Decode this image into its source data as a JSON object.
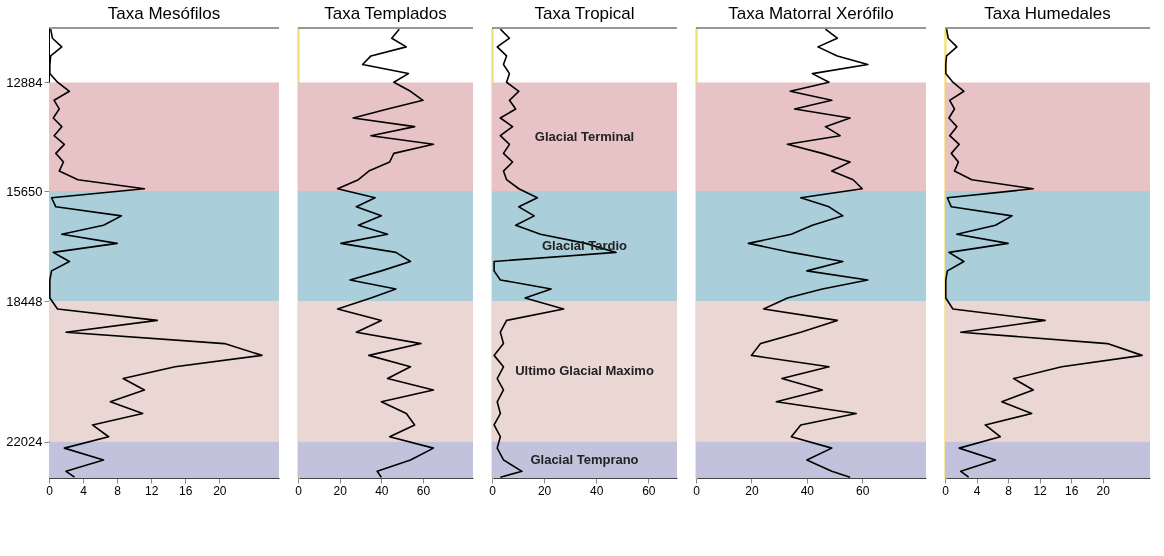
{
  "chart_data": [
    {
      "type": "line",
      "title": "Taxa Mesófilos",
      "xlim": [
        0,
        27
      ],
      "xticks": [
        0,
        4,
        8,
        12,
        16,
        20
      ],
      "ylim": [
        22950,
        11500
      ],
      "yticks": [
        12884,
        15650,
        18448,
        22024
      ],
      "series": [
        {
          "color": "#000000",
          "x": [
            0.2,
            0.4,
            1.5,
            0.2,
            0.1,
            0.1,
            1.0,
            2.4,
            0.6,
            1.2,
            0.5,
            1.5,
            0.6,
            1.8,
            0.8,
            1.7,
            1.2,
            3.4,
            11.2,
            0.3,
            0.8,
            8.5,
            6.4,
            1.5,
            8.0,
            0.5,
            2.4,
            0.3,
            0.1,
            0.1,
            0.1,
            1.0,
            12.7,
            2.0,
            20.6,
            25.0,
            14.8,
            8.7,
            11.2,
            7.2,
            11.0,
            5.1,
            7.0,
            1.8,
            6.4,
            2.0,
            3.0
          ],
          "values": [
            11530,
            11760,
            11980,
            12210,
            12430,
            12660,
            12880,
            13110,
            13340,
            13560,
            13790,
            14010,
            14240,
            14460,
            14690,
            14910,
            15140,
            15360,
            15590,
            15820,
            16050,
            16280,
            16520,
            16750,
            16980,
            17210,
            17440,
            17680,
            17910,
            18140,
            18370,
            18650,
            18940,
            19240,
            19530,
            19830,
            20120,
            20420,
            20710,
            21010,
            21310,
            21600,
            21900,
            22190,
            22490,
            22780,
            22930
          ]
        }
      ],
      "bands": [
        {
          "axis": "y",
          "from": 12884,
          "to": 15650,
          "color": "#e7c3c6"
        },
        {
          "axis": "y",
          "from": 15650,
          "to": 18448,
          "color": "#aacfdb"
        },
        {
          "axis": "y",
          "from": 18448,
          "to": 22024,
          "color": "#ead6d3"
        },
        {
          "axis": "y",
          "from": 22024,
          "to": 22950,
          "color": "#c3c2dd"
        }
      ]
    },
    {
      "type": "line",
      "title": "Taxa Templados",
      "xlim": [
        0,
        84
      ],
      "xticks": [
        0,
        20,
        40,
        60
      ],
      "ylim": [
        22950,
        11500
      ],
      "tick_labels": "x",
      "series": [
        {
          "color": "#000000",
          "x": [
            48.6,
            45,
            52,
            35,
            31,
            53,
            46,
            54,
            60,
            43,
            26.5,
            56,
            35,
            65,
            46,
            44,
            34,
            29,
            19,
            37,
            28,
            40,
            29,
            43,
            20.6,
            47,
            54,
            40,
            25,
            47,
            35,
            19,
            40,
            28,
            59,
            34,
            54,
            43,
            65,
            40,
            52,
            56,
            44,
            65,
            54,
            38,
            40
          ],
          "values": [
            11530,
            11760,
            11980,
            12210,
            12430,
            12660,
            12880,
            13110,
            13340,
            13560,
            13790,
            14010,
            14240,
            14460,
            14690,
            14910,
            15140,
            15360,
            15590,
            15820,
            16050,
            16280,
            16520,
            16750,
            16980,
            17210,
            17440,
            17680,
            17910,
            18140,
            18370,
            18650,
            18940,
            19240,
            19530,
            19830,
            20120,
            20420,
            20710,
            21010,
            21310,
            21600,
            21900,
            22190,
            22490,
            22780,
            22930
          ]
        }
      ],
      "bands": [
        {
          "axis": "y",
          "from": 12884,
          "to": 15650,
          "color": "#e7c3c6"
        },
        {
          "axis": "y",
          "from": 15650,
          "to": 18448,
          "color": "#aacfdb"
        },
        {
          "axis": "y",
          "from": 18448,
          "to": 22024,
          "color": "#ead6d3"
        },
        {
          "axis": "y",
          "from": 22024,
          "to": 22950,
          "color": "#c3c2dd"
        }
      ]
    },
    {
      "type": "line",
      "title": "Taxa Tropical",
      "xlim": [
        0,
        71
      ],
      "xticks": [
        0,
        20,
        40,
        60
      ],
      "ylim": [
        22950,
        11500
      ],
      "tick_labels": "x",
      "series": [
        {
          "color": "#000000",
          "x": [
            3.2,
            6.7,
            2,
            5.6,
            4.4,
            6.7,
            5.6,
            10.3,
            6.7,
            9.1,
            3.2,
            7.9,
            3.2,
            6.7,
            4.4,
            7.9,
            4.4,
            5.6,
            10.3,
            17.4,
            10.3,
            16.2,
            9.1,
            18.6,
            36,
            47.6,
            0.8,
            0.8,
            3.2,
            22.7,
            12.7,
            27.5,
            5.6,
            3.2,
            4.4,
            0.8,
            4.4,
            2,
            4.4,
            2,
            3.2,
            0.8,
            3.2,
            2,
            4.4,
            11.5,
            3.2
          ],
          "values": [
            11530,
            11760,
            11980,
            12210,
            12430,
            12660,
            12880,
            13110,
            13340,
            13560,
            13790,
            14010,
            14240,
            14460,
            14690,
            14910,
            15140,
            15360,
            15590,
            15820,
            16050,
            16280,
            16520,
            16750,
            16980,
            17210,
            17440,
            17680,
            17910,
            18140,
            18370,
            18650,
            18940,
            19240,
            19530,
            19830,
            20120,
            20420,
            20710,
            21010,
            21310,
            21600,
            21900,
            22190,
            22490,
            22780,
            22930
          ]
        }
      ],
      "bands": [
        {
          "axis": "y",
          "from": 12884,
          "to": 15650,
          "color": "#e7c3c6",
          "label": "Glacial Terminal"
        },
        {
          "axis": "y",
          "from": 15650,
          "to": 18448,
          "color": "#aacfdb",
          "label": "Glacial Tardio"
        },
        {
          "axis": "y",
          "from": 18448,
          "to": 22024,
          "color": "#ead6d3",
          "label": "Ultimo Glacial Maximo"
        },
        {
          "axis": "y",
          "from": 22024,
          "to": 22950,
          "color": "#c3c2dd",
          "label": "Glacial Temprano"
        }
      ]
    },
    {
      "type": "line",
      "title": "Taxa Matorral Xerófilo",
      "xlim": [
        0,
        83
      ],
      "xticks": [
        0,
        20,
        40,
        60
      ],
      "ylim": [
        22950,
        11500
      ],
      "tick_labels": "x",
      "series": [
        {
          "color": "#000000",
          "x": [
            46.7,
            51,
            44,
            51,
            62,
            42,
            48,
            34,
            49,
            35.6,
            55.6,
            46.7,
            52,
            33,
            45.6,
            55.6,
            49,
            56.7,
            60,
            37.8,
            48,
            53,
            42,
            34.4,
            18.9,
            34.4,
            53,
            40,
            62,
            45.6,
            33,
            24.4,
            51,
            37.8,
            23.3,
            20,
            48,
            31,
            45.6,
            29,
            57.8,
            37.8,
            34.4,
            49,
            40,
            49,
            55.6
          ],
          "values": [
            11530,
            11760,
            11980,
            12210,
            12430,
            12660,
            12880,
            13110,
            13340,
            13560,
            13790,
            14010,
            14240,
            14460,
            14690,
            14910,
            15140,
            15360,
            15590,
            15820,
            16050,
            16280,
            16520,
            16750,
            16980,
            17210,
            17440,
            17680,
            17910,
            18140,
            18370,
            18650,
            18940,
            19240,
            19530,
            19830,
            20120,
            20420,
            20710,
            21010,
            21310,
            21600,
            21900,
            22190,
            22490,
            22780,
            22930
          ]
        }
      ],
      "bands": [
        {
          "axis": "y",
          "from": 12884,
          "to": 15650,
          "color": "#e7c3c6"
        },
        {
          "axis": "y",
          "from": 15650,
          "to": 18448,
          "color": "#aacfdb"
        },
        {
          "axis": "y",
          "from": 18448,
          "to": 22024,
          "color": "#ead6d3"
        },
        {
          "axis": "y",
          "from": 22024,
          "to": 22950,
          "color": "#c3c2dd"
        }
      ]
    },
    {
      "type": "line",
      "title": "Taxa Humedales",
      "xlim": [
        0,
        26
      ],
      "xticks": [
        0,
        4,
        8,
        12,
        16,
        20
      ],
      "ylim": [
        22950,
        11500
      ],
      "tick_labels": "x",
      "series": [
        {
          "color": "#000000",
          "x": [
            0.2,
            0.4,
            1.5,
            0.2,
            0.1,
            0.1,
            1.0,
            2.4,
            0.6,
            1.2,
            0.5,
            1.5,
            0.6,
            1.8,
            0.8,
            1.7,
            1.2,
            3.4,
            11.2,
            0.3,
            0.8,
            8.5,
            6.4,
            1.5,
            8.0,
            0.5,
            2.4,
            0.3,
            0.1,
            0.1,
            0.1,
            1.0,
            12.7,
            2.0,
            20.6,
            25.0,
            14.8,
            8.7,
            11.2,
            7.2,
            11.0,
            5.1,
            7.0,
            1.8,
            6.4,
            2.0,
            3.0
          ],
          "values": [
            11530,
            11760,
            11980,
            12210,
            12430,
            12660,
            12880,
            13110,
            13340,
            13560,
            13790,
            14010,
            14240,
            14460,
            14690,
            14910,
            15140,
            15360,
            15590,
            15820,
            16050,
            16280,
            16520,
            16750,
            16980,
            17210,
            17440,
            17680,
            17910,
            18140,
            18370,
            18650,
            18940,
            19240,
            19530,
            19830,
            20120,
            20420,
            20710,
            21010,
            21310,
            21600,
            21900,
            22190,
            22490,
            22780,
            22930
          ]
        }
      ],
      "bands": [
        {
          "axis": "y",
          "from": 12884,
          "to": 15650,
          "color": "#e7c3c6"
        },
        {
          "axis": "y",
          "from": 15650,
          "to": 18448,
          "color": "#aacfdb"
        },
        {
          "axis": "y",
          "from": 18448,
          "to": 22024,
          "color": "#ead6d3"
        },
        {
          "axis": "y",
          "from": 22024,
          "to": 22950,
          "color": "#c3c2dd"
        }
      ]
    }
  ]
}
